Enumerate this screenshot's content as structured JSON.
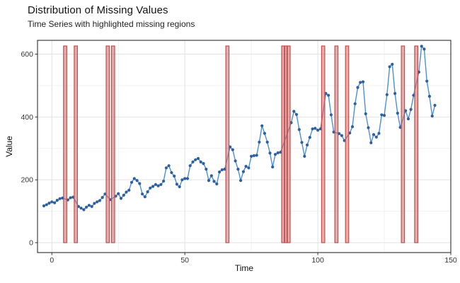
{
  "chart_data": {
    "type": "line",
    "title": "Distribution of Missing Values",
    "subtitle": "Time Series with highlighted missing regions",
    "xlabel": "Time",
    "ylabel": "Value",
    "x_start": -3,
    "x_step": 1,
    "values": [
      117,
      121,
      126,
      130,
      127,
      135,
      140,
      142,
      null,
      136,
      143,
      145,
      null,
      115,
      110,
      105,
      113,
      119,
      115,
      125,
      130,
      134,
      144,
      155,
      null,
      137,
      null,
      148,
      156,
      141,
      151,
      161,
      167,
      192,
      204,
      198,
      188,
      155,
      146,
      162,
      174,
      179,
      185,
      181,
      185,
      196,
      238,
      245,
      223,
      212,
      186,
      178,
      200,
      204,
      204,
      245,
      257,
      264,
      268,
      257,
      252,
      234,
      198,
      213,
      195,
      187,
      225,
      232,
      234,
      null,
      305,
      296,
      260,
      234,
      198,
      226,
      243,
      238,
      275,
      277,
      278,
      320,
      372,
      348,
      320,
      285,
      241,
      281,
      286,
      288,
      null,
      null,
      null,
      382,
      418,
      408,
      360,
      319,
      275,
      311,
      335,
      362,
      364,
      358,
      362,
      null,
      475,
      469,
      407,
      352,
      null,
      347,
      341,
      325,
      null,
      349,
      369,
      442,
      494,
      510,
      512,
      410,
      366,
      318,
      344,
      336,
      348,
      407,
      405,
      471,
      560,
      568,
      475,
      412,
      367,
      null,
      420,
      394,
      424,
      469,
      null,
      543,
      625,
      616,
      514,
      466,
      403,
      437
    ],
    "missing_times": [
      5,
      9,
      21,
      23,
      66,
      87,
      88,
      89,
      102,
      107,
      111,
      132,
      137
    ],
    "missing_region_top": 626,
    "missing_region_half_width": 0.6,
    "x_ticks": [
      0,
      50,
      100,
      150
    ],
    "x_minor_ticks": [
      25,
      75,
      125
    ],
    "y_ticks": [
      0,
      200,
      400,
      600
    ],
    "y_minor_ticks": [
      100,
      300,
      500
    ],
    "xlim": [
      -5.4,
      150
    ],
    "ylim": [
      -31.5,
      644
    ],
    "legend": "none",
    "colors": {
      "point": "#2E5F9E",
      "line": "#4A90D9",
      "missing_fill": "#D06A6A",
      "missing_edge": "#C0504D",
      "grid_major": "#E2E2E2",
      "grid_minor": "#F1F1F1",
      "axis_border": "#2E2E2E",
      "tick_text": "#333333",
      "title_text": "#111111"
    }
  }
}
